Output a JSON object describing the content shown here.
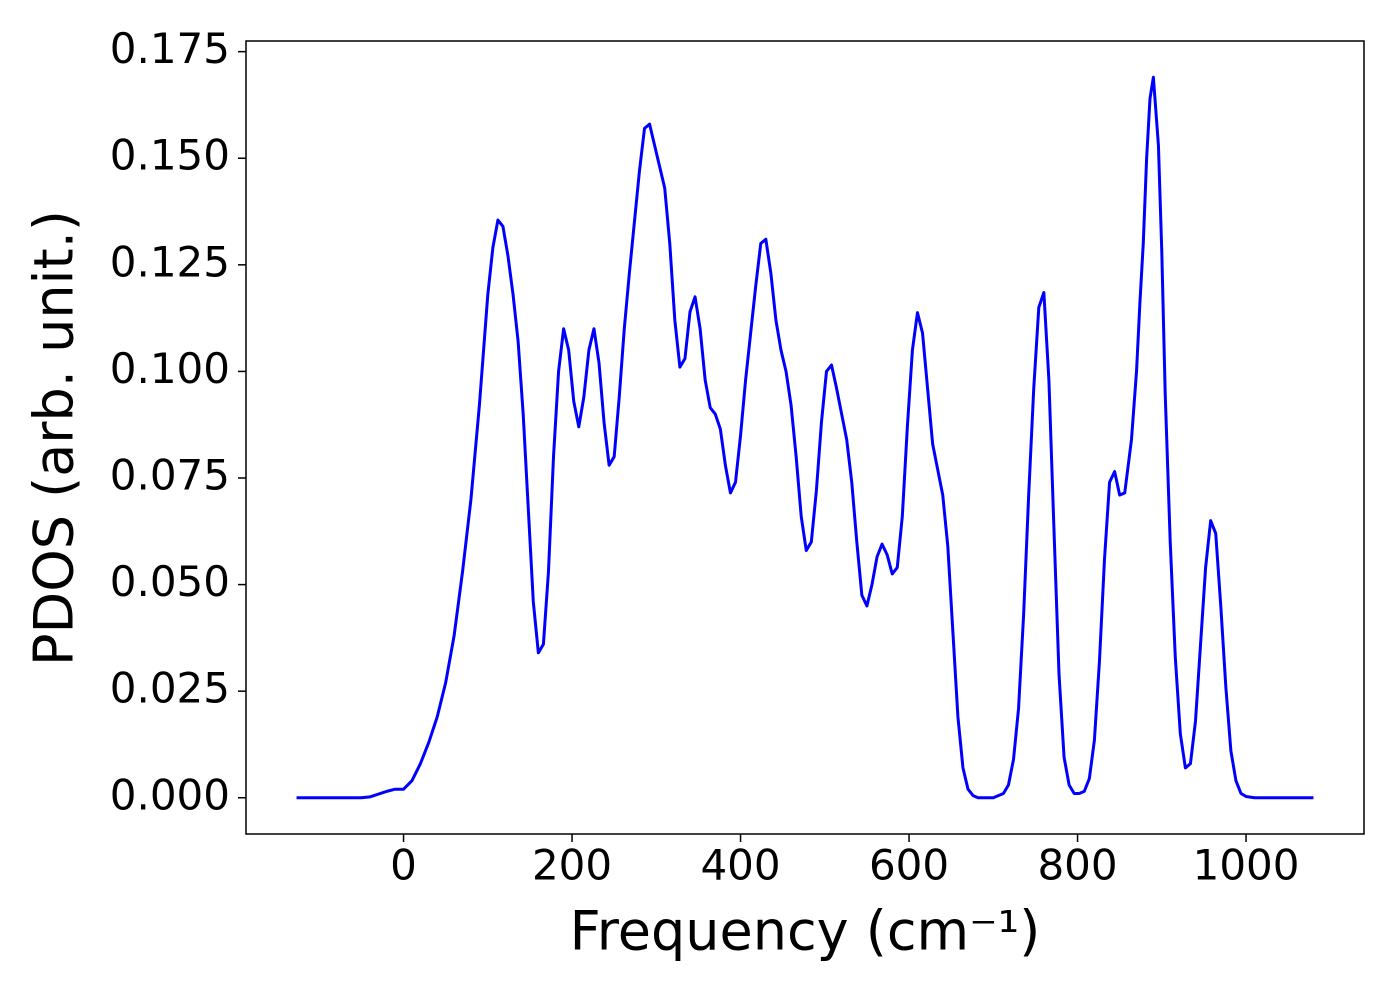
{
  "chart_data": {
    "type": "line",
    "xlabel": "Frequency (cm⁻¹)",
    "ylabel": "PDOS (arb. unit.)",
    "xlim": [
      -187,
      1140
    ],
    "xticks": [
      0,
      200,
      400,
      600,
      800,
      1000
    ],
    "ylim": [
      -0.0085,
      0.1775
    ],
    "yticks": [
      {
        "value": 0,
        "label": "0.000"
      },
      0.025,
      {
        "value": 0.05,
        "label": "0.050"
      },
      0.075,
      {
        "value": 0.1,
        "label": "0.100"
      },
      0.125,
      {
        "value": 0.15,
        "label": "0.150"
      },
      0.175
    ],
    "grid": false,
    "x": [
      -127,
      -50,
      -40,
      -20,
      -10,
      0,
      10,
      20,
      30,
      40,
      50,
      60,
      70,
      80,
      90,
      100,
      106,
      112,
      118,
      124,
      130,
      136,
      142,
      148,
      154,
      160,
      166,
      172,
      178,
      184,
      190,
      196,
      202,
      208,
      214,
      220,
      226,
      232,
      238,
      244,
      250,
      256,
      262,
      268,
      274,
      280,
      286,
      292,
      298,
      304,
      310,
      316,
      322,
      328,
      334,
      340,
      346,
      352,
      358,
      364,
      370,
      376,
      382,
      388,
      394,
      400,
      406,
      412,
      418,
      424,
      430,
      436,
      442,
      448,
      454,
      460,
      466,
      472,
      478,
      484,
      490,
      496,
      502,
      508,
      514,
      520,
      526,
      532,
      538,
      544,
      550,
      556,
      562,
      568,
      574,
      580,
      586,
      592,
      598,
      604,
      610,
      616,
      622,
      628,
      634,
      640,
      646,
      652,
      658,
      664,
      670,
      676,
      682,
      700,
      706,
      712,
      718,
      724,
      730,
      736,
      742,
      748,
      754,
      760,
      766,
      772,
      778,
      784,
      790,
      796,
      802,
      808,
      814,
      820,
      826,
      832,
      838,
      844,
      850,
      856,
      864,
      870,
      874,
      878,
      882,
      886,
      890,
      896,
      900,
      904,
      910,
      916,
      922,
      928,
      934,
      940,
      946,
      952,
      958,
      964,
      970,
      976,
      982,
      988,
      994,
      1000,
      1010,
      1080
    ],
    "series": [
      {
        "color": "#0000ff",
        "values": [
          0,
          0,
          0.0002,
          0.0015,
          0.002,
          0.002,
          0.004,
          0.008,
          0.013,
          0.019,
          0.027,
          0.038,
          0.053,
          0.07,
          0.092,
          0.118,
          0.129,
          0.1355,
          0.134,
          0.127,
          0.118,
          0.107,
          0.09,
          0.068,
          0.046,
          0.034,
          0.036,
          0.053,
          0.08,
          0.1,
          0.11,
          0.105,
          0.093,
          0.087,
          0.094,
          0.105,
          0.11,
          0.102,
          0.088,
          0.078,
          0.08,
          0.094,
          0.11,
          0.123,
          0.135,
          0.147,
          0.157,
          0.158,
          0.153,
          0.148,
          0.143,
          0.13,
          0.112,
          0.101,
          0.103,
          0.114,
          0.1175,
          0.11,
          0.098,
          0.0915,
          0.09,
          0.0865,
          0.078,
          0.0715,
          0.074,
          0.085,
          0.098,
          0.109,
          0.12,
          0.13,
          0.131,
          0.123,
          0.112,
          0.105,
          0.1,
          0.092,
          0.08,
          0.066,
          0.058,
          0.06,
          0.072,
          0.088,
          0.1,
          0.1015,
          0.096,
          0.09,
          0.084,
          0.074,
          0.06,
          0.0475,
          0.045,
          0.05,
          0.0565,
          0.0595,
          0.057,
          0.0525,
          0.054,
          0.066,
          0.087,
          0.105,
          0.1138,
          0.109,
          0.096,
          0.083,
          0.077,
          0.071,
          0.059,
          0.039,
          0.019,
          0.007,
          0.002,
          0.0005,
          0,
          0,
          0.0005,
          0.001,
          0.003,
          0.009,
          0.021,
          0.043,
          0.071,
          0.096,
          0.115,
          0.1185,
          0.098,
          0.063,
          0.029,
          0.0095,
          0.003,
          0.001,
          0.001,
          0.0015,
          0.0045,
          0.0135,
          0.032,
          0.056,
          0.074,
          0.0765,
          0.071,
          0.0715,
          0.084,
          0.1,
          0.116,
          0.13,
          0.15,
          0.164,
          0.169,
          0.153,
          0.128,
          0.095,
          0.06,
          0.033,
          0.015,
          0.007,
          0.008,
          0.018,
          0.036,
          0.054,
          0.065,
          0.062,
          0.045,
          0.026,
          0.011,
          0.004,
          0.001,
          0.0003,
          0,
          0
        ]
      }
    ]
  }
}
